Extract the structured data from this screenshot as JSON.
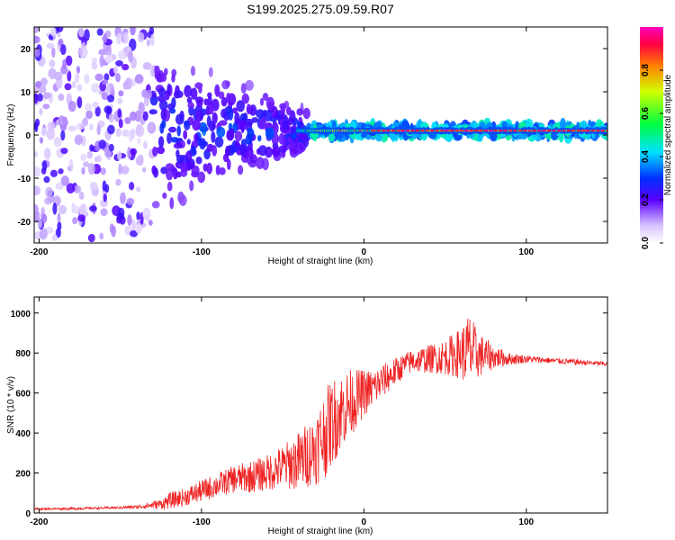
{
  "chart_data": [
    {
      "type": "heatmap",
      "title": "S199.2025.275.09.59.R07",
      "xlabel": "Height of straight line (km)",
      "ylabel": "Frequency (Hz)",
      "xlim": [
        -203,
        150
      ],
      "ylim": [
        -25,
        25
      ],
      "x_ticks": [
        -200,
        -100,
        0,
        100
      ],
      "x_tick_labels": [
        "-200",
        "-100",
        "0",
        "100"
      ],
      "y_ticks": [
        -20,
        -10,
        0,
        10,
        20
      ],
      "y_tick_labels": [
        "-20",
        "-10",
        "0",
        "10",
        "20"
      ],
      "colorbar": {
        "label": "Normalized spectral amplitude",
        "range": [
          0,
          1
        ],
        "ticks": [
          0.0,
          0.2,
          0.4,
          0.6,
          0.8
        ],
        "tick_labels": [
          "0.0",
          "0.2",
          "0.4",
          "0.6",
          "0.8"
        ]
      },
      "signal_band_hz": 1,
      "description_of_trend": "broadband scatter at low heights, converging to narrow ~1 Hz line above -35 km"
    },
    {
      "type": "line",
      "title": "",
      "xlabel": "Height of straight line (km)",
      "ylabel": "SNR (10 * v/v)",
      "xlim": [
        -203,
        150
      ],
      "ylim": [
        0,
        1080
      ],
      "x_ticks": [
        -200,
        -100,
        0,
        100
      ],
      "x_tick_labels": [
        "-200",
        "-100",
        "0",
        "100"
      ],
      "y_ticks": [
        0,
        200,
        400,
        600,
        800,
        1000
      ],
      "y_tick_labels": [
        "0",
        "200",
        "400",
        "600",
        "800",
        "1000"
      ],
      "series": [
        {
          "name": "SNR",
          "color": "#ee2222",
          "x": [
            -203,
            -180,
            -160,
            -140,
            -125,
            -120,
            -110,
            -100,
            -90,
            -80,
            -70,
            -60,
            -50,
            -40,
            -30,
            -25,
            -20,
            -15,
            -10,
            -5,
            0,
            5,
            10,
            15,
            20,
            25,
            30,
            40,
            50,
            60,
            65,
            70,
            80,
            90,
            100,
            110,
            120,
            130,
            140,
            150
          ],
          "y": [
            20,
            22,
            25,
            30,
            45,
            60,
            80,
            110,
            140,
            170,
            180,
            200,
            230,
            260,
            320,
            380,
            450,
            500,
            540,
            570,
            600,
            620,
            650,
            680,
            710,
            740,
            760,
            770,
            780,
            800,
            810,
            790,
            780,
            770,
            770,
            765,
            760,
            755,
            750,
            745
          ],
          "noise": [
            5,
            6,
            6,
            8,
            25,
            40,
            45,
            55,
            60,
            70,
            80,
            90,
            110,
            150,
            180,
            220,
            220,
            200,
            180,
            150,
            120,
            100,
            90,
            80,
            70,
            60,
            60,
            70,
            90,
            130,
            200,
            120,
            60,
            30,
            20,
            15,
            15,
            15,
            12,
            12
          ]
        }
      ]
    }
  ]
}
